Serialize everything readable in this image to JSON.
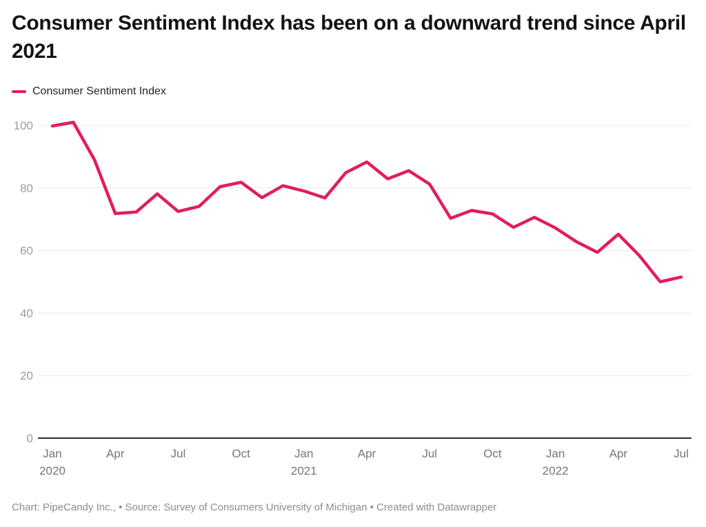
{
  "header": {
    "title": "Consumer Sentiment Index has been on a downward trend since April 2021"
  },
  "legend": {
    "label": "Consumer Sentiment Index",
    "color": "#e21c5e"
  },
  "chart_data": {
    "type": "line",
    "title": "Consumer Sentiment Index has been on a downward trend since April 2021",
    "xlabel": "",
    "ylabel": "",
    "grid": "horizontal",
    "legend_position": "top-left",
    "ylim": [
      0,
      105
    ],
    "y_ticks": [
      0,
      20,
      40,
      60,
      80,
      100
    ],
    "x": [
      "Jan 2020",
      "Feb 2020",
      "Mar 2020",
      "Apr 2020",
      "May 2020",
      "Jun 2020",
      "Jul 2020",
      "Aug 2020",
      "Sep 2020",
      "Oct 2020",
      "Nov 2020",
      "Dec 2020",
      "Jan 2021",
      "Feb 2021",
      "Mar 2021",
      "Apr 2021",
      "May 2021",
      "Jun 2021",
      "Jul 2021",
      "Aug 2021",
      "Sep 2021",
      "Oct 2021",
      "Nov 2021",
      "Dec 2021",
      "Jan 2022",
      "Feb 2022",
      "Mar 2022",
      "Apr 2022",
      "May 2022",
      "Jun 2022",
      "Jul 2022"
    ],
    "x_ticks": [
      {
        "i": 0,
        "label": "Jan",
        "year": "2020"
      },
      {
        "i": 3,
        "label": "Apr"
      },
      {
        "i": 6,
        "label": "Jul"
      },
      {
        "i": 9,
        "label": "Oct"
      },
      {
        "i": 12,
        "label": "Jan",
        "year": "2021"
      },
      {
        "i": 15,
        "label": "Apr"
      },
      {
        "i": 18,
        "label": "Jul"
      },
      {
        "i": 21,
        "label": "Oct"
      },
      {
        "i": 24,
        "label": "Jan",
        "year": "2022"
      },
      {
        "i": 27,
        "label": "Apr"
      },
      {
        "i": 30,
        "label": "Jul"
      }
    ],
    "series": [
      {
        "name": "Consumer Sentiment Index",
        "color": "#e21c5e",
        "values": [
          99.8,
          101.0,
          89.1,
          71.8,
          72.3,
          78.1,
          72.5,
          74.1,
          80.4,
          81.8,
          76.9,
          80.7,
          79.0,
          76.8,
          84.9,
          88.3,
          82.9,
          85.5,
          81.2,
          70.3,
          72.8,
          71.7,
          67.4,
          70.6,
          67.2,
          62.8,
          59.4,
          65.2,
          58.4,
          50.0,
          51.5
        ]
      }
    ],
    "colors": {
      "gridline": "#e9e9e9",
      "baseline": "#2d2d2d",
      "y_tick_label": "#9c9c9c",
      "x_tick_label": "#757575"
    }
  },
  "footer": {
    "text": "Chart: PipeCandy Inc., • Source: Survey of Consumers University of Michigan • Created with Datawrapper"
  }
}
